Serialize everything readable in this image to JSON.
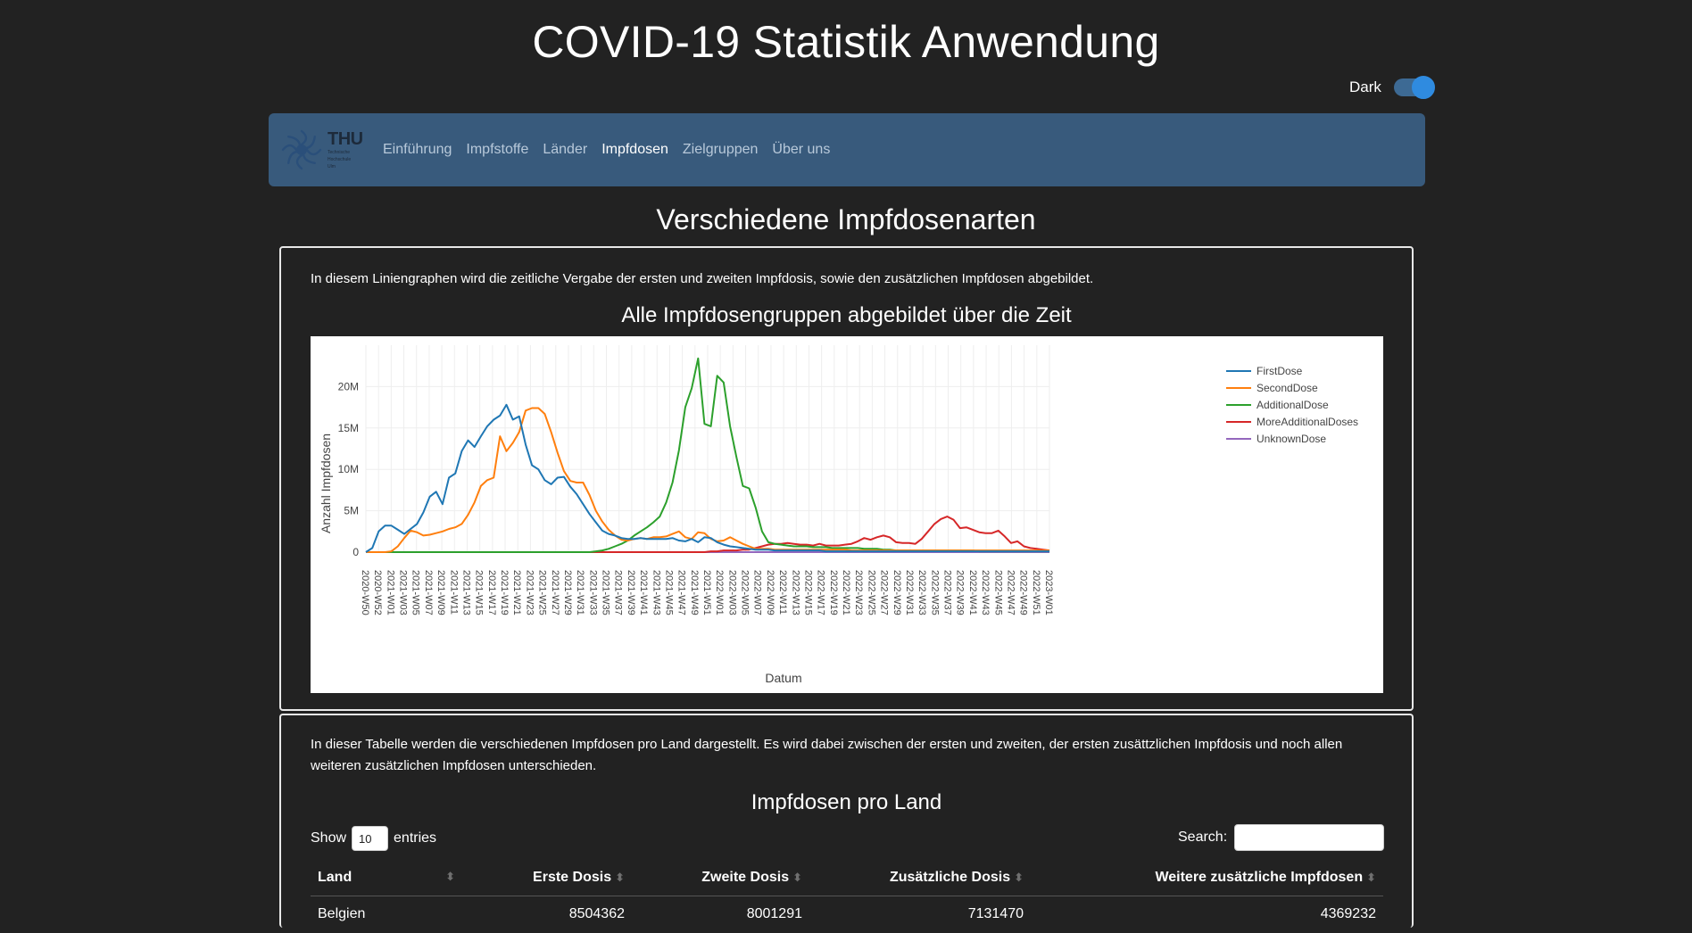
{
  "app": {
    "title": "COVID-19 Statistik Anwendung"
  },
  "theme": {
    "label": "Dark",
    "enabled": true
  },
  "nav": {
    "logo_text": "THU",
    "logo_subtext": [
      "Technische",
      "Hochschule",
      "Ulm"
    ],
    "items": [
      {
        "label": "Einführung",
        "active": false
      },
      {
        "label": "Impfstoffe",
        "active": false
      },
      {
        "label": "Länder",
        "active": false
      },
      {
        "label": "Impfdosen",
        "active": true
      },
      {
        "label": "Zielgruppen",
        "active": false
      },
      {
        "label": "Über uns",
        "active": false
      }
    ]
  },
  "section": {
    "title": "Verschiedene Impfdosenarten"
  },
  "line_card": {
    "description": "In diesem Liniengraphen wird die zeitliche Vergabe der ersten und zweiten Impfdosis, sowie den zusätzlichen Impfdosen abgebildet.",
    "chart_title": "Alle Impfdosengruppen abgebildet über die Zeit"
  },
  "chart_data": {
    "type": "line",
    "title": "Alle Impfdosengruppen abgebildet über die Zeit",
    "xlabel": "Datum",
    "ylabel": "Anzahl Impfdosen",
    "x_tick_labels": [
      "2020-W50",
      "2020-W52",
      "2021-W01",
      "2021-W03",
      "2021-W05",
      "2021-W07",
      "2021-W09",
      "2021-W11",
      "2021-W13",
      "2021-W15",
      "2021-W17",
      "2021-W19",
      "2021-W21",
      "2021-W23",
      "2021-W25",
      "2021-W27",
      "2021-W29",
      "2021-W31",
      "2021-W33",
      "2021-W35",
      "2021-W37",
      "2021-W39",
      "2021-W41",
      "2021-W43",
      "2021-W45",
      "2021-W47",
      "2021-W49",
      "2021-W51",
      "2022-W01",
      "2022-W03",
      "2022-W05",
      "2022-W07",
      "2022-W09",
      "2022-W11",
      "2022-W13",
      "2022-W15",
      "2022-W17",
      "2022-W19",
      "2022-W21",
      "2022-W23",
      "2022-W25",
      "2022-W27",
      "2022-W29",
      "2022-W31",
      "2022-W33",
      "2022-W35",
      "2022-W37",
      "2022-W39",
      "2022-W41",
      "2022-W43",
      "2022-W45",
      "2022-W47",
      "2022-W49",
      "2022-W51",
      "2023-W01"
    ],
    "y_ticks": [
      0,
      5000000,
      10000000,
      15000000,
      20000000
    ],
    "y_tick_labels": [
      "0",
      "5M",
      "10M",
      "15M",
      "20M"
    ],
    "ylim": [
      0,
      25000000
    ],
    "grid": true,
    "legend_position": "top-right",
    "series": [
      {
        "name": "FirstDose",
        "color": "#1f77b4",
        "values": [
          0,
          0.5,
          2.5,
          3.2,
          3.2,
          2.7,
          2.2,
          2.8,
          3.4,
          4.8,
          6.7,
          7.3,
          5.8,
          9.0,
          9.5,
          12.2,
          13.5,
          12.7,
          14.0,
          15.2,
          16.0,
          16.5,
          17.8,
          16.0,
          16.4,
          13.0,
          10.5,
          10.0,
          8.7,
          8.2,
          9.0,
          9.1,
          7.9,
          7.0,
          5.8,
          4.6,
          3.6,
          2.6,
          2.2,
          2.0,
          1.7,
          1.6,
          1.6,
          1.7,
          1.6,
          1.6,
          1.6,
          1.6,
          1.7,
          1.4,
          1.3,
          1.6,
          1.2,
          1.8,
          1.7,
          1.2,
          0.9,
          0.7,
          0.6,
          0.5,
          0.4,
          0.3,
          0.3,
          0.3,
          0.2,
          0.2,
          0.2,
          0.2,
          0.2,
          0.2,
          0.2,
          0.2,
          0.1,
          0.1,
          0.1,
          0.1,
          0.1,
          0.1,
          0.1,
          0.1,
          0.1,
          0.1,
          0.1,
          0.1,
          0.1,
          0.1,
          0.1,
          0.1,
          0.1,
          0.1,
          0.1,
          0.1,
          0.1,
          0.1,
          0.1,
          0.1,
          0.1,
          0.1,
          0.1,
          0.1,
          0.1,
          0.1,
          0.1,
          0.1,
          0.1,
          0.1,
          0.1,
          0.1
        ]
      },
      {
        "name": "SecondDose",
        "color": "#ff7f0e",
        "values": [
          0,
          0,
          0,
          0,
          0.1,
          0.7,
          1.7,
          2.6,
          2.4,
          2.0,
          2.1,
          2.3,
          2.5,
          2.8,
          3.0,
          3.4,
          4.5,
          6.0,
          8.0,
          8.7,
          9.0,
          14.0,
          12.2,
          13.2,
          14.5,
          17.1,
          17.4,
          17.4,
          16.7,
          14.5,
          12.0,
          9.8,
          8.6,
          8.4,
          8.4,
          6.9,
          5.0,
          3.7,
          2.7,
          2.0,
          1.5,
          1.4,
          1.6,
          1.7,
          1.6,
          1.8,
          1.8,
          1.9,
          2.2,
          2.5,
          1.8,
          1.6,
          2.4,
          2.3,
          1.6,
          1.3,
          1.4,
          1.8,
          1.4,
          1.0,
          0.7,
          0.4,
          0.4,
          0.4,
          0.3,
          0.3,
          0.3,
          0.3,
          0.3,
          0.3,
          0.3,
          0.3,
          0.3,
          0.3,
          0.3,
          0.3,
          0.2,
          0.2,
          0.2,
          0.2,
          0.2,
          0.2,
          0.2,
          0.2,
          0.2,
          0.2,
          0.2,
          0.2,
          0.2,
          0.2,
          0.2,
          0.2,
          0.2,
          0.2,
          0.2,
          0.2,
          0.2,
          0.2,
          0.2,
          0.2,
          0.2,
          0.2,
          0.2,
          0.2,
          0.2,
          0.2,
          0.2,
          0.2
        ]
      },
      {
        "name": "AdditionalDose",
        "color": "#2ca02c",
        "values": [
          0,
          0,
          0,
          0,
          0,
          0,
          0,
          0,
          0,
          0,
          0,
          0,
          0,
          0,
          0,
          0,
          0,
          0,
          0,
          0,
          0,
          0,
          0,
          0,
          0,
          0,
          0,
          0,
          0,
          0,
          0,
          0,
          0,
          0,
          0,
          0,
          0.1,
          0.2,
          0.4,
          0.7,
          1.0,
          1.4,
          2.0,
          2.5,
          3.0,
          3.6,
          4.3,
          6.0,
          8.4,
          12.3,
          17.5,
          19.8,
          23.4,
          15.5,
          15.2,
          21.3,
          20.5,
          15.2,
          11.5,
          8.0,
          7.7,
          5.4,
          2.5,
          1.2,
          1.0,
          0.9,
          0.8,
          0.7,
          0.7,
          0.7,
          0.6,
          0.6,
          0.6,
          0.5,
          0.5,
          0.5,
          0.5,
          0.5,
          0.4,
          0.4,
          0.4,
          0.3,
          0.3,
          0.2,
          0.2,
          0.2,
          0.2,
          0.2,
          0.2,
          0.2,
          0.2,
          0.2,
          0.2,
          0.2,
          0.2,
          0.2,
          0.1,
          0.1,
          0.1,
          0.1,
          0.1,
          0.1,
          0.1,
          0.1,
          0.1,
          0.1,
          0.1,
          0.1
        ]
      },
      {
        "name": "MoreAdditionalDoses",
        "color": "#d62728",
        "values": [
          0,
          0,
          0,
          0,
          0,
          0,
          0,
          0,
          0,
          0,
          0,
          0,
          0,
          0,
          0,
          0,
          0,
          0,
          0,
          0,
          0,
          0,
          0,
          0,
          0,
          0,
          0,
          0,
          0,
          0,
          0,
          0,
          0,
          0,
          0,
          0,
          0,
          0,
          0,
          0,
          0,
          0,
          0,
          0,
          0,
          0,
          0,
          0,
          0,
          0,
          0,
          0,
          0,
          0,
          0.1,
          0.1,
          0.2,
          0.2,
          0.2,
          0.3,
          0.3,
          0.5,
          0.7,
          0.9,
          1.0,
          1.0,
          1.1,
          1.0,
          0.9,
          0.9,
          0.8,
          1.0,
          0.8,
          0.8,
          0.8,
          0.9,
          1.0,
          1.3,
          1.7,
          1.5,
          1.8,
          2.0,
          1.8,
          1.2,
          1.1,
          1.1,
          1.0,
          1.6,
          2.5,
          3.4,
          4.0,
          4.3,
          3.9,
          2.9,
          3.0,
          2.7,
          2.4,
          2.3,
          2.3,
          2.6,
          1.9,
          1.1,
          1.3,
          0.7,
          0.5,
          0.4,
          0.3,
          0.2
        ]
      },
      {
        "name": "UnknownDose",
        "color": "#9467bd",
        "values": [
          0,
          0,
          0,
          0,
          0,
          0,
          0,
          0,
          0,
          0,
          0,
          0,
          0,
          0,
          0,
          0,
          0,
          0,
          0,
          0,
          0,
          0,
          0,
          0,
          0,
          0,
          0,
          0,
          0,
          0,
          0,
          0,
          0,
          0,
          0,
          0,
          0,
          0,
          0,
          0,
          0,
          0,
          0,
          0,
          0,
          0,
          0,
          0,
          0,
          0,
          0,
          0,
          0,
          0,
          0,
          0,
          0,
          0,
          0,
          0,
          0,
          0,
          0,
          0,
          0,
          0,
          0,
          0,
          0,
          0,
          0,
          0,
          0,
          0,
          0,
          0,
          0,
          0,
          0,
          0,
          0,
          0,
          0,
          0,
          0,
          0,
          0,
          0,
          0,
          0,
          0,
          0,
          0,
          0,
          0,
          0,
          0,
          0,
          0,
          0,
          0,
          0,
          0,
          0,
          0,
          0,
          0,
          0
        ]
      }
    ],
    "values_unit": "millions"
  },
  "table_card": {
    "description": "In dieser Tabelle werden die verschiedenen Impfdosen pro Land dargestellt. Es wird dabei zwischen der ersten und zweiten, der ersten zusättzlichen Impfdosis und noch allen weiteren zusätzlichen Impfdosen unterschieden.",
    "table_title": "Impfdosen pro Land",
    "show_label": "Show",
    "length_value": "10",
    "entries_label": "entries",
    "search_label": "Search:",
    "search_value": "",
    "columns": [
      "Land",
      "Erste Dosis",
      "Zweite Dosis",
      "Zusätzliche Dosis",
      "Weitere zusätzliche Impfdosen"
    ],
    "rows": [
      [
        "Belgien",
        "8504362",
        "8001291",
        "7131470",
        "4369232"
      ]
    ]
  }
}
